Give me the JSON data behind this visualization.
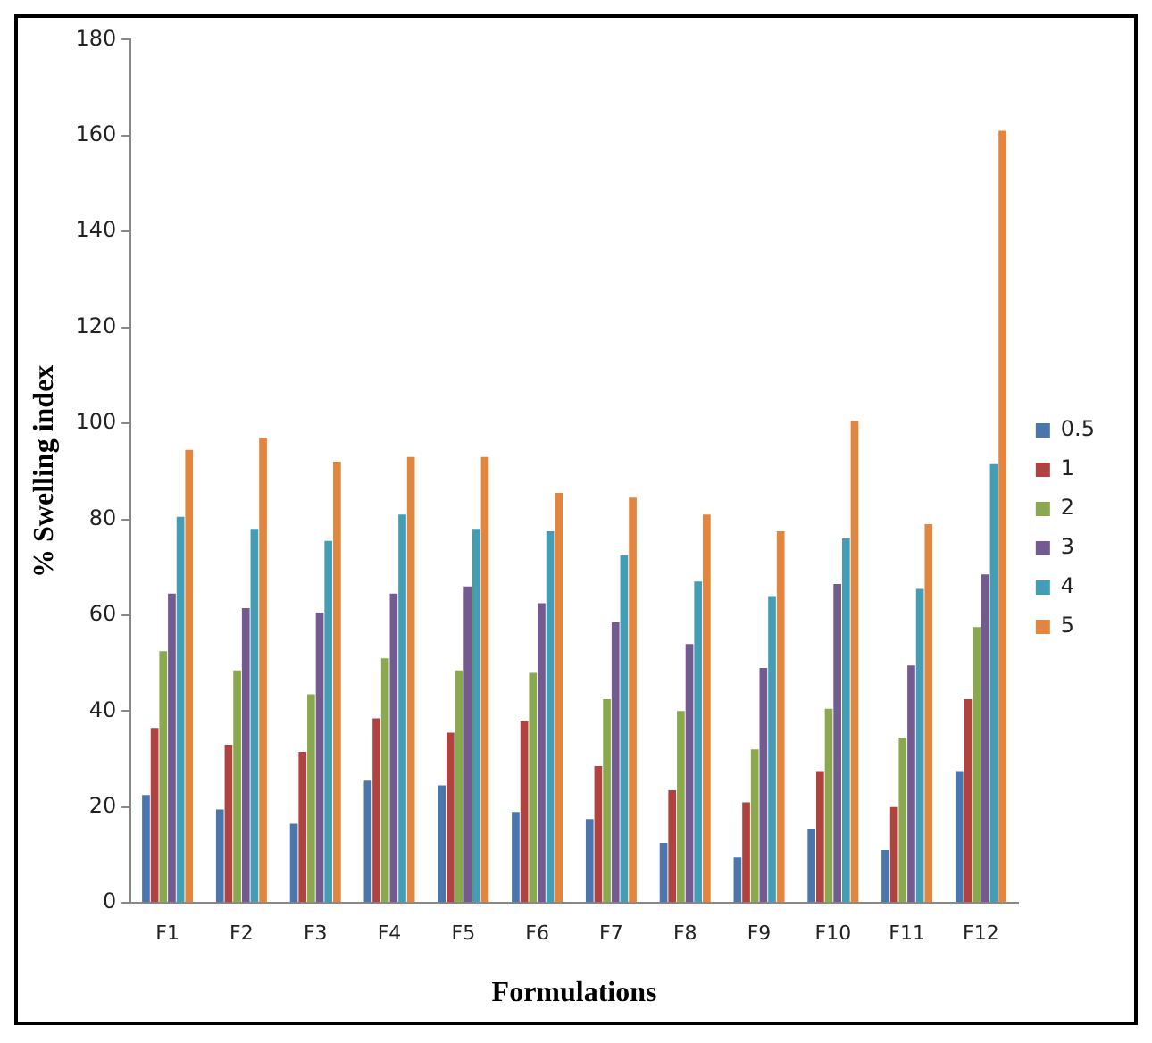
{
  "chart_data": {
    "type": "bar",
    "xlabel": "Formulations",
    "ylabel": "% Swelling index",
    "categories": [
      "F1",
      "F2",
      "F3",
      "F4",
      "F5",
      "F6",
      "F7",
      "F8",
      "F9",
      "F10",
      "F11",
      "F12"
    ],
    "series": [
      {
        "name": "0.5",
        "color": "#4a76ac",
        "values": [
          22.5,
          19.5,
          16.5,
          25.5,
          24.5,
          19,
          17.5,
          12.5,
          9.5,
          15.5,
          11,
          27.5
        ]
      },
      {
        "name": "1",
        "color": "#b0423f",
        "values": [
          36.5,
          33,
          31.5,
          38.5,
          35.5,
          38,
          28.5,
          23.5,
          21,
          27.5,
          20,
          42.5
        ]
      },
      {
        "name": "2",
        "color": "#8aa84e",
        "values": [
          52.5,
          48.5,
          43.5,
          51,
          48.5,
          48,
          42.5,
          40,
          32,
          40.5,
          34.5,
          57.5
        ]
      },
      {
        "name": "3",
        "color": "#735a91",
        "values": [
          64.5,
          61.5,
          60.5,
          64.5,
          66,
          62.5,
          58.5,
          54,
          49,
          66.5,
          49.5,
          68.5
        ]
      },
      {
        "name": "4",
        "color": "#439db5",
        "values": [
          80.5,
          78,
          75.5,
          81,
          78,
          77.5,
          72.5,
          67,
          64,
          76,
          65.5,
          91.5
        ]
      },
      {
        "name": "5",
        "color": "#e2863f",
        "values": [
          94.5,
          97,
          92,
          93,
          93,
          85.5,
          84.5,
          81,
          77.5,
          100.5,
          79,
          161
        ]
      }
    ],
    "ylim": [
      0,
      180
    ],
    "yticks": [
      0,
      20,
      40,
      60,
      80,
      100,
      120,
      140,
      160,
      180
    ],
    "grid": false,
    "legend": "right"
  }
}
